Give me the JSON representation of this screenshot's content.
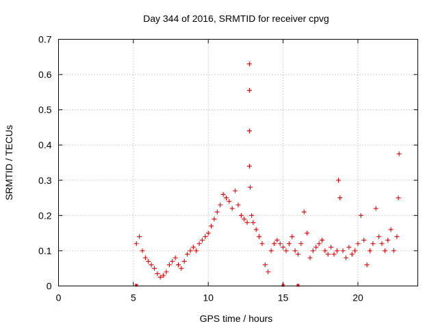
{
  "chart_data": {
    "type": "scatter",
    "title": "Day 344 of 2016, SRMTID for receiver cpvg",
    "xlabel": "GPS time / hours",
    "ylabel": "SRMTID / TECUs",
    "xlim": [
      0,
      24
    ],
    "ylim": [
      0,
      0.7
    ],
    "xticks": [
      0,
      5,
      10,
      15,
      20
    ],
    "xtick_labels": [
      "0",
      "5",
      "10",
      "15",
      "20"
    ],
    "yticks": [
      0,
      0.1,
      0.2,
      0.3,
      0.4,
      0.5,
      0.6,
      0.7
    ],
    "ytick_labels": [
      "0",
      "0.1",
      "0.2",
      "0.3",
      "0.4",
      "0.5",
      "0.6",
      "0.7"
    ],
    "grid": true,
    "marker": "+",
    "color": "#e00000",
    "series": [
      {
        "name": "SRMTID",
        "x": [
          5.2,
          5.4,
          5.6,
          5.8,
          6.0,
          6.2,
          6.4,
          6.6,
          6.8,
          7.0,
          7.2,
          7.4,
          7.6,
          7.8,
          8.0,
          8.2,
          8.4,
          8.6,
          8.8,
          9.0,
          9.2,
          9.4,
          9.6,
          9.8,
          10.0,
          10.2,
          10.4,
          10.6,
          10.8,
          11.0,
          11.2,
          11.4,
          11.6,
          11.8,
          12.0,
          12.2,
          12.4,
          12.6,
          12.75,
          12.75,
          12.75,
          12.75,
          12.8,
          12.9,
          13.0,
          13.2,
          13.4,
          13.6,
          13.8,
          14.0,
          14.2,
          14.4,
          14.6,
          14.8,
          15.0,
          15.2,
          15.4,
          15.6,
          15.8,
          16.0,
          16.2,
          16.4,
          16.6,
          16.8,
          17.0,
          17.2,
          17.4,
          17.6,
          17.8,
          18.0,
          18.2,
          18.4,
          18.6,
          18.7,
          18.8,
          19.0,
          19.2,
          19.4,
          19.6,
          19.8,
          20.0,
          20.2,
          20.4,
          20.6,
          20.8,
          21.0,
          21.2,
          21.4,
          21.6,
          21.8,
          22.0,
          22.2,
          22.4,
          22.6,
          22.7,
          22.75
        ],
        "y": [
          0.12,
          0.14,
          0.1,
          0.08,
          0.07,
          0.06,
          0.05,
          0.035,
          0.025,
          0.03,
          0.04,
          0.06,
          0.07,
          0.08,
          0.06,
          0.05,
          0.07,
          0.09,
          0.1,
          0.11,
          0.1,
          0.12,
          0.13,
          0.14,
          0.15,
          0.17,
          0.19,
          0.21,
          0.23,
          0.26,
          0.25,
          0.24,
          0.22,
          0.27,
          0.23,
          0.2,
          0.19,
          0.18,
          0.63,
          0.555,
          0.44,
          0.34,
          0.28,
          0.2,
          0.18,
          0.16,
          0.14,
          0.12,
          0.06,
          0.04,
          0.1,
          0.12,
          0.13,
          0.12,
          0.11,
          0.1,
          0.12,
          0.14,
          0.1,
          0.09,
          0.12,
          0.21,
          0.15,
          0.08,
          0.1,
          0.11,
          0.12,
          0.13,
          0.1,
          0.09,
          0.11,
          0.09,
          0.1,
          0.3,
          0.25,
          0.1,
          0.08,
          0.11,
          0.09,
          0.1,
          0.12,
          0.2,
          0.13,
          0.06,
          0.1,
          0.12,
          0.22,
          0.14,
          0.12,
          0.1,
          0.13,
          0.16,
          0.1,
          0.14,
          0.25,
          0.375
        ]
      }
    ],
    "gap_markers_x": [
      5.2,
      15.0,
      16.0
    ]
  }
}
